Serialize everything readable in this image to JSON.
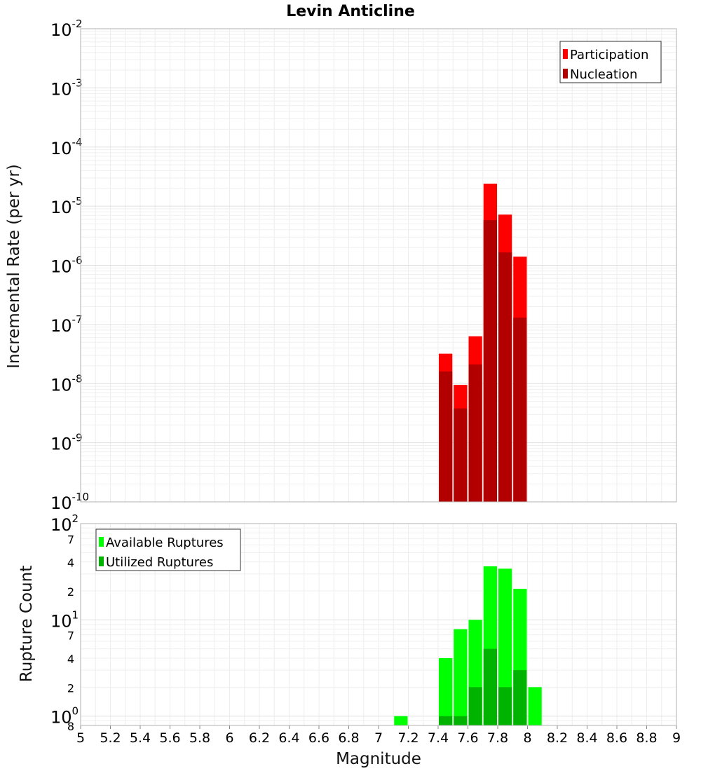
{
  "chart_data": [
    {
      "type": "bar",
      "title": "Levin Anticline",
      "xlabel": "Magnitude",
      "ylabel": "Incremental Rate (per yr)",
      "yscale": "log",
      "xlim": [
        5,
        9
      ],
      "ylim": [
        1e-10,
        0.01
      ],
      "y_decades": [
        {
          "base": "10",
          "exp": "-10"
        },
        {
          "base": "10",
          "exp": "-9"
        },
        {
          "base": "10",
          "exp": "-8"
        },
        {
          "base": "10",
          "exp": "-7"
        },
        {
          "base": "10",
          "exp": "-6"
        },
        {
          "base": "10",
          "exp": "-5"
        },
        {
          "base": "10",
          "exp": "-4"
        },
        {
          "base": "10",
          "exp": "-3"
        },
        {
          "base": "10",
          "exp": "-2"
        }
      ],
      "legend_position": "top-right",
      "series": [
        {
          "name": "Participation",
          "color": "#ff0000",
          "x": [
            7.45,
            7.55,
            7.65,
            7.75,
            7.85,
            7.95
          ],
          "values": [
            3.2e-08,
            9.5e-09,
            6.3e-08,
            2.4e-05,
            7.2e-06,
            1.4e-06
          ]
        },
        {
          "name": "Nucleation",
          "color": "#b20000",
          "x": [
            7.45,
            7.55,
            7.65,
            7.75,
            7.85,
            7.95
          ],
          "values": [
            1.6e-08,
            3.8e-09,
            2.1e-08,
            5.8e-06,
            1.65e-06,
            1.3e-07
          ]
        }
      ]
    },
    {
      "type": "bar",
      "xlabel": "Magnitude",
      "ylabel": "Rupture Count",
      "yscale": "log",
      "xlim": [
        5,
        9
      ],
      "ylim": [
        0.8,
        100
      ],
      "x_ticks": [
        "5",
        "5.2",
        "5.4",
        "5.6",
        "5.8",
        "6",
        "6.2",
        "6.4",
        "6.6",
        "6.8",
        "7",
        "7.2",
        "7.4",
        "7.6",
        "7.8",
        "8",
        "8.2",
        "8.4",
        "8.6",
        "8.8",
        "9"
      ],
      "y_decades": [
        {
          "base": "10",
          "exp": "0"
        },
        {
          "base": "10",
          "exp": "1"
        },
        {
          "base": "10",
          "exp": "2"
        }
      ],
      "y_minor_labels": [
        {
          "label": "8",
          "value": 0.8
        },
        {
          "label": "2",
          "value": 2
        },
        {
          "label": "4",
          "value": 4
        },
        {
          "label": "7",
          "value": 7
        },
        {
          "label": "2",
          "value": 20
        },
        {
          "label": "4",
          "value": 40
        },
        {
          "label": "7",
          "value": 70
        }
      ],
      "legend_position": "top-left",
      "series": [
        {
          "name": "Available Ruptures",
          "color": "#00ff00",
          "x": [
            7.15,
            7.45,
            7.55,
            7.65,
            7.75,
            7.85,
            7.95,
            8.05
          ],
          "values": [
            1,
            4,
            8,
            10,
            36,
            34,
            21,
            2
          ]
        },
        {
          "name": "Utilized Ruptures",
          "color": "#00b300",
          "x": [
            7.15,
            7.45,
            7.55,
            7.65,
            7.75,
            7.85,
            7.95,
            8.05
          ],
          "values": [
            0,
            1,
            1,
            2,
            5,
            2,
            3,
            0
          ]
        }
      ]
    }
  ]
}
